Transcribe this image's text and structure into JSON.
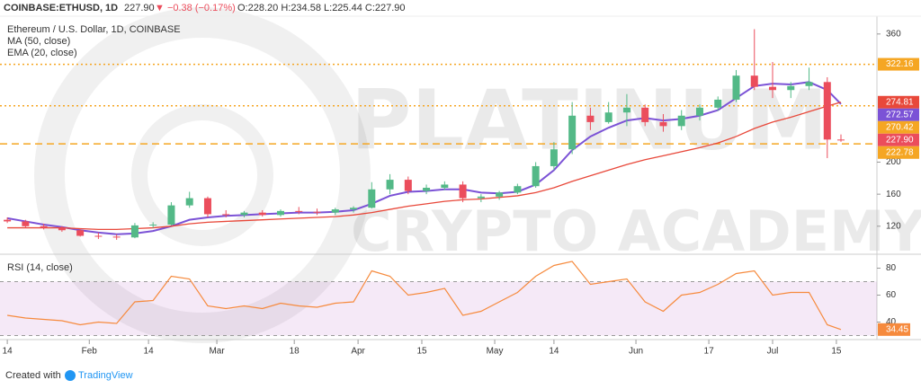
{
  "header": {
    "symbol": "COINBASE:ETHUSD, 1D",
    "price": "227.90",
    "change": "▼ −0.38 (−0.17%)",
    "ohlc": "O:228.20 H:234.58 L:225.44 C:227.90"
  },
  "watermark": {
    "line1": "PLATINUM",
    "line2": "CRYPTO ACADEMY"
  },
  "footer": {
    "created_with": "Created with",
    "brand": "TradingView"
  },
  "chart_data": [
    {
      "type": "candlestick",
      "title": "Ethereum / U.S. Dollar, 1D, COINBASE",
      "x": [
        0,
        4,
        8,
        12,
        16,
        20,
        24,
        28,
        32,
        36,
        40,
        44,
        48,
        52,
        56,
        60,
        64,
        68,
        72,
        76,
        80,
        84,
        88,
        92,
        96,
        100,
        104,
        108,
        112,
        116,
        120,
        124,
        128,
        132,
        136,
        140,
        144,
        148,
        152,
        156,
        160,
        164,
        168,
        172,
        176,
        180,
        183
      ],
      "open": [
        128,
        126,
        120,
        118,
        115,
        108,
        107,
        106,
        121,
        122,
        146,
        155,
        135,
        134,
        137,
        134,
        139,
        138,
        137,
        141,
        143,
        166,
        178,
        164,
        168,
        172,
        155,
        157,
        162,
        170,
        195,
        216,
        258,
        250,
        262,
        268,
        250,
        245,
        258,
        268,
        278,
        308,
        294,
        290,
        295,
        300,
        228.2
      ],
      "high": [
        131,
        128,
        123,
        120,
        117,
        112,
        110,
        124,
        125,
        150,
        163,
        157,
        140,
        139,
        140,
        141,
        144,
        142,
        143,
        145,
        175,
        185,
        182,
        172,
        176,
        176,
        160,
        164,
        173,
        200,
        225,
        275,
        268,
        275,
        285,
        272,
        260,
        265,
        272,
        282,
        315,
        366,
        325,
        300,
        318,
        306,
        234.58
      ],
      "low": [
        124,
        118,
        116,
        113,
        107,
        104,
        103,
        105,
        118,
        121,
        143,
        131,
        131,
        131,
        132,
        132,
        135,
        134,
        134,
        137,
        142,
        160,
        160,
        160,
        165,
        150,
        150,
        153,
        160,
        168,
        190,
        210,
        240,
        248,
        245,
        245,
        238,
        240,
        252,
        264,
        275,
        290,
        280,
        280,
        290,
        205,
        225.44
      ],
      "close": [
        126,
        120,
        118,
        115,
        108,
        107,
        106,
        121,
        122,
        146,
        155,
        135,
        134,
        137,
        134,
        139,
        138,
        137,
        141,
        143,
        166,
        178,
        164,
        168,
        172,
        155,
        157,
        162,
        170,
        195,
        216,
        258,
        250,
        262,
        268,
        250,
        245,
        258,
        268,
        278,
        308,
        294,
        290,
        295,
        300,
        228.2,
        227.9
      ],
      "up_color": "#53b987",
      "down_color": "#eb4d5c",
      "series": [
        {
          "name": "MA (50, close)",
          "color": "#7b52d6",
          "values": [
            130,
            126,
            122,
            119,
            115,
            112,
            110,
            111,
            114,
            120,
            128,
            131,
            133,
            134,
            135,
            136,
            137,
            137,
            138,
            140,
            148,
            158,
            163,
            164,
            166,
            166,
            162,
            161,
            163,
            172,
            190,
            215,
            232,
            243,
            252,
            255,
            252,
            254,
            258,
            265,
            280,
            295,
            298,
            297,
            300,
            290,
            272.57
          ]
        },
        {
          "name": "EMA (20, close)",
          "color": "#e8483a",
          "values": [
            118,
            118,
            118,
            118,
            117,
            116,
            116,
            117,
            118,
            120,
            123,
            125,
            126,
            127,
            128,
            129,
            130,
            131,
            132,
            134,
            137,
            141,
            145,
            148,
            151,
            153,
            154,
            156,
            158,
            162,
            168,
            176,
            183,
            190,
            197,
            203,
            208,
            213,
            218,
            224,
            232,
            242,
            250,
            256,
            263,
            270,
            274.81
          ]
        }
      ],
      "xlim": [
        -1.6,
        190.9
      ],
      "xticks": [
        {
          "value": 0,
          "label": "14"
        },
        {
          "value": 18,
          "label": "Feb"
        },
        {
          "value": 31,
          "label": "14"
        },
        {
          "value": 46,
          "label": "Mar"
        },
        {
          "value": 63,
          "label": "18"
        },
        {
          "value": 77,
          "label": "Apr"
        },
        {
          "value": 91,
          "label": "15"
        },
        {
          "value": 107,
          "label": "May"
        },
        {
          "value": 120,
          "label": "14"
        },
        {
          "value": 138,
          "label": "Jun"
        },
        {
          "value": 154,
          "label": "17"
        },
        {
          "value": 168,
          "label": "Jul"
        },
        {
          "value": 182,
          "label": "15"
        }
      ],
      "ylim": [
        85,
        380
      ],
      "yticks": [
        120,
        160,
        200,
        360
      ],
      "levels": [
        {
          "value": 322.16,
          "color": "#f5a623"
        },
        {
          "value": 270.42,
          "color": "#f5a623"
        },
        {
          "value": 222.78,
          "color": "#f5a623"
        }
      ],
      "price_labels": [
        {
          "value": 322.16,
          "color": "#f5a623"
        },
        {
          "value": 274.81,
          "color": "#e8483a"
        },
        {
          "value": 272.57,
          "color": "#7b52d6"
        },
        {
          "value": 270.42,
          "color": "#f5a623"
        },
        {
          "value": {
            "value": 227.9,
            "label": "227.90"
          },
          "color": "#eb4d5c"
        },
        {
          "value": 222.78,
          "color": "#f5a623"
        }
      ]
    },
    {
      "type": "line",
      "title": "RSI (14, close)",
      "x": [
        0,
        4,
        8,
        12,
        16,
        20,
        24,
        28,
        32,
        36,
        40,
        44,
        48,
        52,
        56,
        60,
        64,
        68,
        72,
        76,
        80,
        84,
        88,
        92,
        96,
        100,
        104,
        108,
        112,
        116,
        120,
        124,
        128,
        132,
        136,
        140,
        144,
        148,
        152,
        156,
        160,
        164,
        168,
        172,
        176,
        180,
        183
      ],
      "values": [
        45,
        43,
        42,
        41,
        38,
        40,
        39,
        55,
        56,
        74,
        72,
        52,
        50,
        52,
        50,
        54,
        52,
        51,
        54,
        55,
        78,
        74,
        60,
        62,
        65,
        45,
        48,
        55,
        62,
        74,
        82,
        85,
        68,
        70,
        72,
        55,
        48,
        60,
        62,
        68,
        76,
        78,
        60,
        62,
        62,
        38,
        34.45
      ],
      "color": "#f68a3d",
      "band": [
        30,
        70
      ],
      "band_color": "#9c27b0",
      "xlim": [
        -1.6,
        190.9
      ],
      "ylim": [
        27,
        89
      ],
      "yticks": [
        40,
        60,
        80
      ],
      "last_value": 34.45
    }
  ]
}
